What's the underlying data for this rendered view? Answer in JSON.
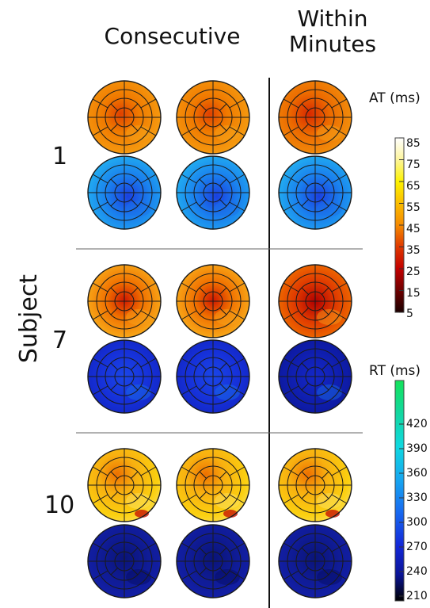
{
  "headers": {
    "consecutive": "Consecutive",
    "within_line1": "Within",
    "within_line2": "Minutes"
  },
  "row_label": "Subject",
  "subjects": [
    "1",
    "7",
    "10"
  ],
  "colorbars": {
    "at": {
      "title": "AT (ms)",
      "ticks": [
        "85",
        "75",
        "65",
        "55",
        "45",
        "35",
        "25",
        "15",
        "5"
      ],
      "colors": [
        "#ffffff",
        "#fdf5a0",
        "#fdf200",
        "#fbbb00",
        "#f58a00",
        "#e03b00",
        "#c20000",
        "#6a0000",
        "#1a0000"
      ]
    },
    "rt": {
      "title": "RT (ms)",
      "ticks": [
        "420",
        "390",
        "360",
        "330",
        "300",
        "270",
        "240",
        "210"
      ],
      "colors": [
        "#13e35a",
        "#12d7a0",
        "#0fd8e0",
        "#16a6f0",
        "#1768f0",
        "#1328d8",
        "#0a1498",
        "#000000"
      ]
    }
  }
}
